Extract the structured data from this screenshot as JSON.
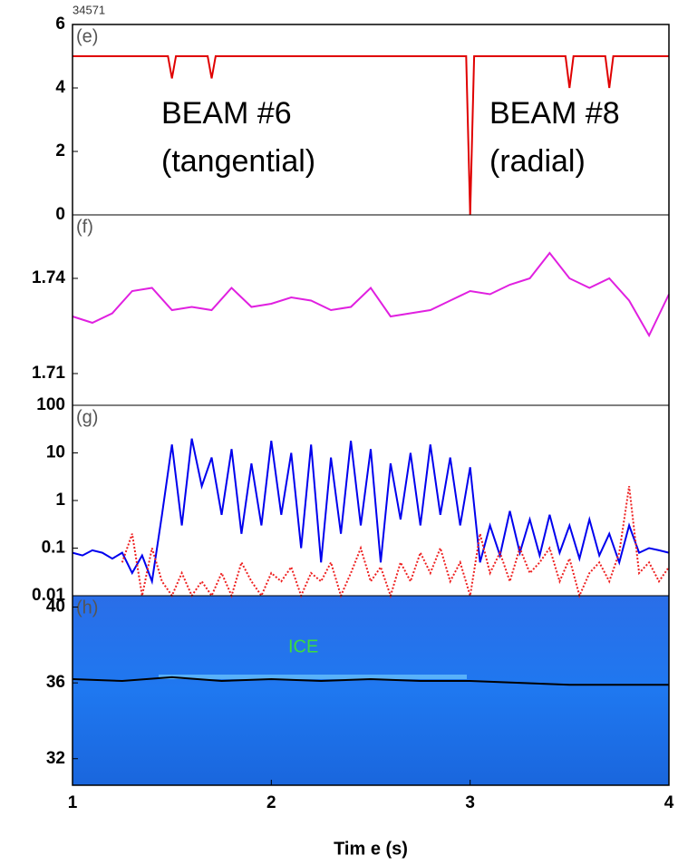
{
  "chart_data": [
    {
      "type": "line",
      "label": "(e)",
      "annotation": "34571",
      "annotations": [
        "BEAM #6",
        "(tangential)",
        "BEAM #8",
        "(radial)"
      ],
      "xlim": [
        1,
        4
      ],
      "ylim": [
        0,
        6
      ],
      "yticks": [
        0,
        2,
        4,
        6
      ],
      "x": [
        1,
        1.48,
        1.5,
        1.52,
        1.68,
        1.7,
        1.72,
        2.98,
        3.0,
        3.02,
        3.48,
        3.5,
        3.52,
        3.68,
        3.7,
        3.72,
        4
      ],
      "series": [
        {
          "color": "#e00000",
          "values": [
            5,
            5,
            4.3,
            5,
            5,
            4.3,
            5,
            5,
            0,
            5,
            5,
            4,
            5,
            5,
            4,
            5,
            5
          ]
        }
      ]
    },
    {
      "type": "line",
      "label": "(f)",
      "xlim": [
        1,
        4
      ],
      "ylim": [
        1.7,
        1.76
      ],
      "yticks": [
        1.71,
        1.74
      ],
      "x": [
        1.0,
        1.1,
        1.2,
        1.3,
        1.4,
        1.5,
        1.6,
        1.7,
        1.8,
        1.9,
        2.0,
        2.1,
        2.2,
        2.3,
        2.4,
        2.5,
        2.6,
        2.7,
        2.8,
        2.9,
        3.0,
        3.1,
        3.2,
        3.3,
        3.4,
        3.5,
        3.6,
        3.7,
        3.8,
        3.9,
        4.0
      ],
      "series": [
        {
          "color": "#e020e0",
          "values": [
            1.728,
            1.726,
            1.729,
            1.736,
            1.737,
            1.73,
            1.731,
            1.73,
            1.737,
            1.731,
            1.732,
            1.734,
            1.733,
            1.73,
            1.731,
            1.737,
            1.728,
            1.729,
            1.73,
            1.733,
            1.736,
            1.735,
            1.738,
            1.74,
            1.748,
            1.74,
            1.737,
            1.74,
            1.733,
            1.722,
            1.735
          ]
        }
      ]
    },
    {
      "type": "line",
      "label": "(g)",
      "log_scale": true,
      "xlim": [
        1,
        4
      ],
      "ylim": [
        0.01,
        100
      ],
      "yticks": [
        0.01,
        0.1,
        1,
        10,
        100
      ],
      "x": [
        1.0,
        1.05,
        1.1,
        1.15,
        1.2,
        1.25,
        1.3,
        1.35,
        1.4,
        1.45,
        1.5,
        1.55,
        1.6,
        1.65,
        1.7,
        1.75,
        1.8,
        1.85,
        1.9,
        1.95,
        2.0,
        2.05,
        2.1,
        2.15,
        2.2,
        2.25,
        2.3,
        2.35,
        2.4,
        2.45,
        2.5,
        2.55,
        2.6,
        2.65,
        2.7,
        2.75,
        2.8,
        2.85,
        2.9,
        2.95,
        3.0,
        3.05,
        3.1,
        3.15,
        3.2,
        3.25,
        3.3,
        3.35,
        3.4,
        3.45,
        3.5,
        3.55,
        3.6,
        3.65,
        3.7,
        3.75,
        3.8,
        3.85,
        3.9,
        3.95,
        4.0
      ],
      "series": [
        {
          "color": "#0000ee",
          "linestyle": "solid",
          "values": [
            0.08,
            0.07,
            0.09,
            0.08,
            0.06,
            0.08,
            0.03,
            0.07,
            0.02,
            0.5,
            15,
            0.3,
            20,
            2,
            8,
            0.5,
            12,
            0.2,
            6,
            0.3,
            18,
            0.5,
            10,
            0.1,
            15,
            0.05,
            8,
            0.2,
            18,
            0.3,
            12,
            0.05,
            6,
            0.4,
            10,
            0.3,
            15,
            0.5,
            8,
            0.3,
            5,
            0.05,
            0.3,
            0.07,
            0.6,
            0.08,
            0.4,
            0.07,
            0.5,
            0.08,
            0.3,
            0.06,
            0.4,
            0.07,
            0.2,
            0.05,
            0.3,
            0.08,
            0.1,
            0.09,
            0.08
          ]
        },
        {
          "color": "#ee2020",
          "linestyle": "dotted",
          "values": [
            null,
            null,
            null,
            null,
            null,
            0.05,
            0.2,
            0.01,
            0.1,
            0.02,
            0.01,
            0.03,
            0.01,
            0.02,
            0.01,
            0.03,
            0.01,
            0.05,
            0.02,
            0.01,
            0.03,
            0.02,
            0.04,
            0.01,
            0.03,
            0.02,
            0.05,
            0.01,
            0.03,
            0.1,
            0.02,
            0.04,
            0.01,
            0.05,
            0.02,
            0.08,
            0.03,
            0.1,
            0.02,
            0.05,
            0.01,
            0.2,
            0.03,
            0.08,
            0.02,
            0.1,
            0.03,
            0.05,
            0.1,
            0.02,
            0.06,
            0.01,
            0.03,
            0.05,
            0.02,
            0.08,
            2,
            0.03,
            0.05,
            0.02,
            0.04
          ]
        }
      ]
    },
    {
      "type": "line",
      "label": "(h)",
      "annotation": "ICE",
      "xlim": [
        1,
        4
      ],
      "xticks": [
        1,
        2,
        3,
        4
      ],
      "xlabel": "Tim e (s)",
      "ylim": [
        30.6,
        40.6
      ],
      "yticks": [
        32,
        36,
        40
      ],
      "x": [
        1,
        1.25,
        1.5,
        1.75,
        2,
        2.25,
        2.5,
        2.75,
        3,
        3.25,
        3.5,
        3.75,
        4
      ],
      "series": [
        {
          "color": "#000000",
          "values": [
            36.2,
            36.1,
            36.3,
            36.1,
            36.2,
            36.1,
            36.2,
            36.1,
            36.1,
            36.0,
            35.9,
            35.9,
            35.9
          ]
        }
      ]
    }
  ]
}
